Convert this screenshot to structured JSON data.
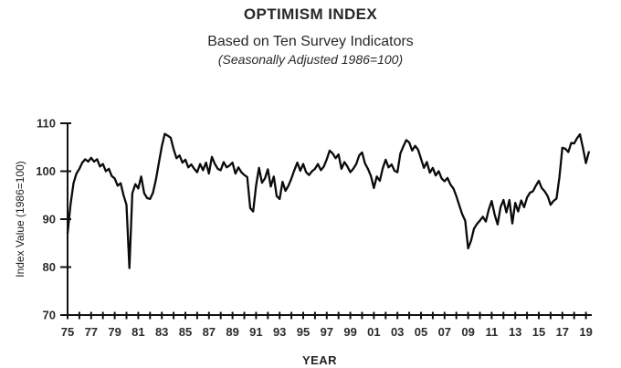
{
  "header": {
    "title": "OPTIMISM INDEX",
    "subtitle": "Based on Ten Survey Indicators",
    "note": "(Seasonally Adjusted 1986=100)"
  },
  "chart_data": {
    "type": "line",
    "title": "OPTIMISM INDEX",
    "subtitle": "Based on Ten Survey Indicators",
    "note": "(Seasonally Adjusted 1986=100)",
    "xlabel": "YEAR",
    "ylabel": "Index Value (1986=100)",
    "grid": false,
    "legend": "none",
    "line_color": "#0a0a0a",
    "ylim": [
      70,
      110
    ],
    "y_ticks": [
      110,
      100,
      90,
      80,
      70
    ],
    "x_start_year": 1975,
    "x_end_year": 2019,
    "x_tick_every_years": 1,
    "x_label_every_years": 2,
    "x_tick_labels": [
      "75",
      "77",
      "79",
      "81",
      "83",
      "85",
      "87",
      "89",
      "91",
      "93",
      "95",
      "97",
      "99",
      "01",
      "03",
      "05",
      "07",
      "09",
      "11",
      "13",
      "15",
      "17",
      "19"
    ],
    "points_per_year": 4,
    "frequency": "quarterly",
    "series": [
      {
        "name": "Optimism Index",
        "start": "1975 Q1",
        "end": "2019 Q2",
        "values": [
          87.0,
          93.0,
          97.5,
          99.5,
          100.5,
          101.8,
          102.5,
          102.0,
          102.8,
          102.0,
          102.5,
          101.0,
          101.5,
          100.0,
          100.5,
          99.0,
          98.5,
          97.0,
          97.5,
          95.0,
          93.0,
          79.8,
          95.4,
          97.3,
          96.4,
          98.9,
          95.4,
          94.4,
          94.2,
          95.5,
          98.3,
          101.8,
          105.2,
          107.8,
          107.4,
          107.0,
          104.6,
          102.7,
          103.3,
          101.8,
          102.4,
          100.8,
          101.4,
          100.5,
          99.8,
          101.5,
          100.2,
          101.8,
          99.5,
          103.0,
          101.5,
          100.5,
          100.2,
          101.9,
          100.8,
          101.2,
          101.8,
          99.5,
          100.8,
          99.8,
          99.2,
          98.8,
          92.3,
          91.6,
          97.0,
          100.7,
          97.6,
          98.5,
          100.4,
          96.8,
          98.9,
          94.8,
          94.2,
          97.8,
          95.9,
          97.0,
          98.5,
          100.2,
          101.8,
          100.1,
          101.5,
          99.8,
          99.2,
          100.0,
          100.5,
          101.5,
          100.2,
          101.0,
          102.5,
          104.3,
          103.7,
          102.7,
          103.5,
          100.5,
          101.9,
          101.0,
          99.8,
          100.5,
          101.5,
          103.3,
          103.9,
          101.6,
          100.5,
          99.0,
          96.5,
          98.9,
          98.0,
          100.6,
          102.4,
          100.8,
          101.4,
          100.1,
          99.8,
          103.7,
          105.2,
          106.5,
          106.0,
          104.3,
          105.3,
          104.5,
          102.6,
          100.7,
          101.9,
          99.7,
          100.7,
          99.1,
          100.0,
          98.5,
          97.9,
          98.6,
          97.2,
          96.4,
          94.8,
          92.9,
          91.0,
          89.7,
          83.9,
          85.5,
          88.0,
          89.0,
          89.7,
          90.5,
          89.5,
          92.0,
          93.8,
          91.0,
          88.9,
          92.5,
          94.0,
          91.4,
          94.0,
          89.1,
          93.4,
          91.6,
          93.9,
          92.5,
          94.5,
          95.5,
          95.8,
          97.0,
          98.0,
          96.5,
          95.8,
          94.8,
          93.0,
          93.8,
          94.3,
          98.8,
          104.9,
          104.7,
          104.0,
          105.9,
          105.8,
          106.9,
          107.7,
          104.8,
          101.7,
          104.0
        ]
      }
    ]
  }
}
